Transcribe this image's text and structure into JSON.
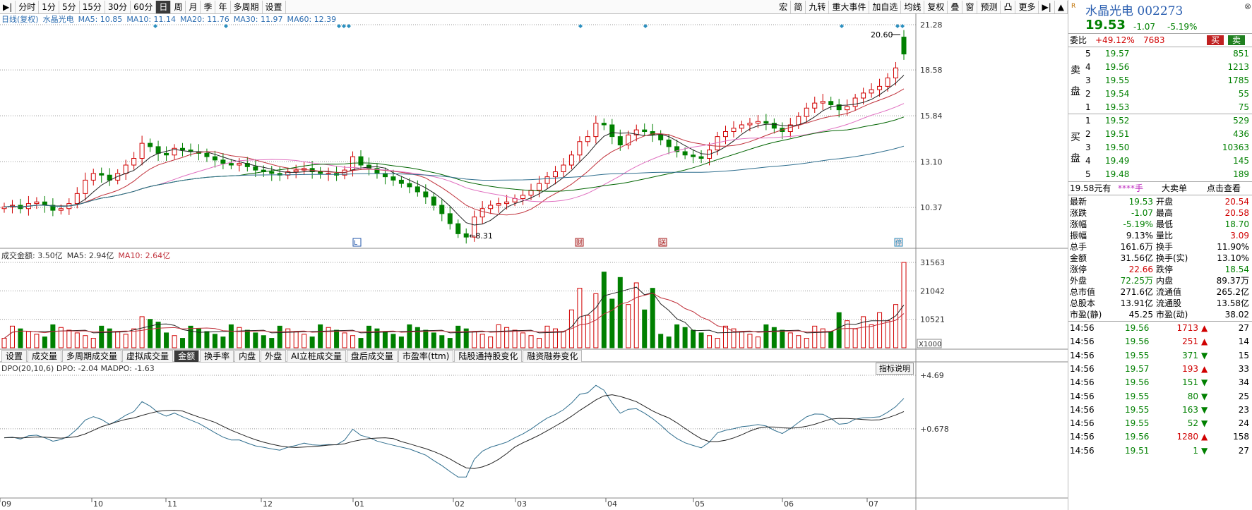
{
  "toolbar": {
    "left": [
      "分时",
      "1分",
      "5分",
      "15分",
      "30分",
      "60分",
      "日",
      "周",
      "月",
      "季",
      "年",
      "多周期",
      "设置"
    ],
    "active": "日",
    "right": [
      "宏",
      "简",
      "九转",
      "重大事件",
      "加自选",
      "均线",
      "复权",
      "叠",
      "窗",
      "预测",
      "凸",
      "更多"
    ]
  },
  "legend": {
    "title": "日线(复权)",
    "name": "水晶光电",
    "ma5": "MA5: 10.85",
    "ma10": "MA10: 11.14",
    "ma20": "MA20: 11.76",
    "ma30": "MA30: 11.97",
    "ma60": "MA60: 12.39"
  },
  "price_axis": [
    "21.28",
    "18.58",
    "15.84",
    "13.10",
    "10.37"
  ],
  "price_marks": {
    "high": "20.60",
    "low": "8.31"
  },
  "volume_legend": {
    "label": "成交金额: 3.50亿",
    "ma5": "MA5: 2.94亿",
    "ma10": "MA10: 2.64亿"
  },
  "volume_axis": [
    "31563",
    "21042",
    "10521",
    "X1000"
  ],
  "tabs": [
    "设置",
    "成交量",
    "多周期成交量",
    "虚拟成交量",
    "金额",
    "换手率",
    "内盘",
    "外盘",
    "AI立桩成交量",
    "盘后成交量",
    "市盈率(ttm)",
    "陆股通持股变化",
    "融资融券变化"
  ],
  "active_tab": "金额",
  "indicator": {
    "legend": "DPO(20,10,6) DPO: -2.04  MADPO: -1.63",
    "button": "指标说明",
    "axis": [
      "+4.69",
      "+0.678"
    ]
  },
  "date_axis": [
    "09",
    "10",
    "11",
    "12",
    "01",
    "02",
    "03",
    "04",
    "05",
    "06",
    "07"
  ],
  "event_markers": [
    "L",
    "财",
    "送",
    "停"
  ],
  "colors": {
    "up": "#d00000",
    "down": "#008000",
    "ma5": "#222222",
    "ma10": "#c0303a",
    "ma20": "#e070c0",
    "ma30": "#006400",
    "ma60": "#2f6e8e",
    "bg_grid": "#999999"
  },
  "chart_data": {
    "type": "candlestick",
    "x_range": [
      "09",
      "07"
    ],
    "ylim": [
      8.31,
      21.28
    ],
    "closes": [
      10.4,
      10.5,
      10.3,
      10.6,
      10.7,
      10.5,
      10.2,
      10.3,
      10.6,
      11.2,
      12.0,
      12.4,
      12.3,
      12.0,
      12.4,
      12.9,
      13.3,
      14.2,
      14.0,
      13.6,
      13.5,
      13.9,
      13.8,
      13.7,
      13.6,
      13.4,
      13.2,
      13.0,
      12.9,
      13.0,
      12.8,
      12.6,
      12.5,
      12.4,
      12.3,
      12.5,
      12.6,
      12.7,
      12.5,
      12.4,
      12.4,
      12.3,
      12.6,
      13.4,
      12.9,
      12.7,
      12.4,
      12.2,
      12.0,
      11.8,
      11.6,
      11.3,
      11.0,
      10.5,
      10.0,
      9.4,
      8.8,
      8.6,
      9.8,
      10.3,
      10.5,
      10.6,
      10.7,
      10.9,
      11.1,
      11.4,
      11.8,
      12.2,
      12.5,
      12.9,
      13.5,
      14.3,
      14.6,
      15.4,
      15.3,
      14.6,
      14.1,
      14.7,
      15.0,
      14.9,
      14.7,
      14.4,
      14.0,
      13.7,
      13.5,
      13.4,
      13.3,
      13.8,
      14.6,
      14.9,
      15.1,
      15.3,
      15.4,
      15.5,
      15.4,
      15.1,
      14.9,
      15.3,
      15.8,
      16.3,
      16.6,
      16.7,
      16.5,
      16.2,
      16.4,
      16.9,
      17.2,
      17.4,
      17.6,
      18.1,
      18.7,
      19.53
    ],
    "series": [
      {
        "name": "MA5",
        "values_start": 10.85
      },
      {
        "name": "MA10",
        "values_start": 11.14
      },
      {
        "name": "MA20",
        "values_start": 11.76
      },
      {
        "name": "MA30",
        "values_start": 11.97
      },
      {
        "name": "MA60",
        "values_start": 12.39
      }
    ]
  },
  "quote": {
    "name": "水晶光电 002273",
    "price": "19.53",
    "change": "-1.07",
    "pct": "-5.19%",
    "weibi_label": "委比",
    "weibi_value": "+49.12%",
    "weibi_vol": "7683",
    "buy_btn": "买",
    "sell_btn": "卖",
    "sell_label": "卖盘",
    "buy_label": "买盘",
    "sells": [
      {
        "lvl": "5",
        "price": "19.57",
        "vol": "851"
      },
      {
        "lvl": "4",
        "price": "19.56",
        "vol": "1213"
      },
      {
        "lvl": "3",
        "price": "19.55",
        "vol": "1785"
      },
      {
        "lvl": "2",
        "price": "19.54",
        "vol": "55"
      },
      {
        "lvl": "1",
        "price": "19.53",
        "vol": "75"
      }
    ],
    "buys": [
      {
        "lvl": "1",
        "price": "19.52",
        "vol": "529"
      },
      {
        "lvl": "2",
        "price": "19.51",
        "vol": "436"
      },
      {
        "lvl": "3",
        "price": "19.50",
        "vol": "10363"
      },
      {
        "lvl": "4",
        "price": "19.49",
        "vol": "145"
      },
      {
        "lvl": "5",
        "price": "19.48",
        "vol": "189"
      }
    ],
    "info_bar": [
      "19.58元有",
      "****手",
      "大卖单",
      "点击查看"
    ],
    "stats": [
      [
        "最新",
        "19.53",
        "开盘",
        "20.54"
      ],
      [
        "涨跌",
        "-1.07",
        "最高",
        "20.58"
      ],
      [
        "涨幅",
        "-5.19%",
        "最低",
        "18.70"
      ],
      [
        "振幅",
        "9.13%",
        "量比",
        "3.09"
      ],
      [
        "总手",
        "161.6万",
        "换手",
        "11.90%"
      ],
      [
        "金额",
        "31.56亿",
        "换手(实)",
        "13.10%"
      ],
      [
        "涨停",
        "22.66",
        "跌停",
        "18.54"
      ],
      [
        "外盘",
        "72.25万",
        "内盘",
        "89.37万"
      ],
      [
        "总市值",
        "271.6亿",
        "流通值",
        "265.2亿"
      ],
      [
        "总股本",
        "13.91亿",
        "流通股",
        "13.58亿"
      ],
      [
        "市盈(静)",
        "45.25",
        "市盈(动)",
        "38.02"
      ]
    ],
    "ticks": [
      [
        "14:56",
        "19.56",
        "1713",
        "up",
        "27"
      ],
      [
        "14:56",
        "19.56",
        "251",
        "up",
        "14"
      ],
      [
        "14:56",
        "19.55",
        "371",
        "down",
        "15"
      ],
      [
        "14:56",
        "19.57",
        "193",
        "up",
        "33"
      ],
      [
        "14:56",
        "19.56",
        "151",
        "down",
        "34"
      ],
      [
        "14:56",
        "19.55",
        "80",
        "down",
        "25"
      ],
      [
        "14:56",
        "19.55",
        "163",
        "down",
        "23"
      ],
      [
        "14:56",
        "19.55",
        "52",
        "down",
        "24"
      ],
      [
        "14:56",
        "19.56",
        "1280",
        "up",
        "158"
      ],
      [
        "14:56",
        "19.51",
        "1",
        "down",
        "27"
      ]
    ]
  }
}
